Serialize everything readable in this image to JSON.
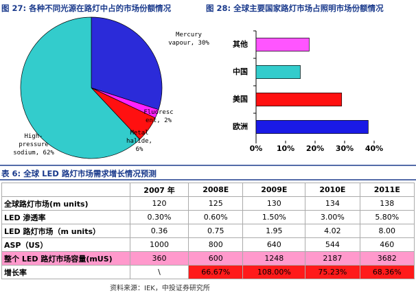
{
  "chart_data": [
    {
      "type": "pie",
      "title": "图 27: 各种不同光源在路灯中占的市场份额情况",
      "categories": [
        "Mercury vapour",
        "Fluorescent",
        "Metal halide",
        "High-pressure sodium"
      ],
      "values": [
        30,
        2,
        6,
        62
      ],
      "labels": [
        "Mercury vapour, 30%",
        "Fluoresc ent, 2%",
        "Metal halide, 6%",
        "High-pressure sodium, 62%"
      ],
      "colors": [
        "#2b2bd9",
        "#ff22ff",
        "#ff1010",
        "#33cccc"
      ]
    },
    {
      "type": "hbar",
      "title": "图 28: 全球主要国家路灯市场占照明市场份额情况",
      "categories": [
        "其他",
        "中国",
        "美国",
        "欧洲"
      ],
      "values": [
        18,
        15,
        29,
        38
      ],
      "colors": [
        "#ff55ff",
        "#33cccc",
        "#ff1010",
        "#1a1ae6"
      ],
      "xlim": [
        0,
        40
      ],
      "xticks": [
        {
          "value": 0,
          "label": "0%"
        },
        {
          "value": 10,
          "label": "10%"
        },
        {
          "value": 20,
          "label": "20%"
        },
        {
          "value": 30,
          "label": "30%"
        },
        {
          "value": 40,
          "label": "40%"
        }
      ]
    }
  ],
  "table": {
    "title": "表 6: 全球 LED 路灯市场需求增长情况预测",
    "header": [
      "2007 年",
      "2008E",
      "2009E",
      "2010E",
      "2011E"
    ],
    "rows": [
      [
        "全球路灯市场(m units)",
        "120",
        "125",
        "130",
        "134",
        "138"
      ],
      [
        "LED 渗透率",
        "0.30%",
        "0.60%",
        "1.50%",
        "3.00%",
        "5.80%"
      ],
      [
        "LED 路灯市场（m units）",
        "0.36",
        "0.75",
        "1.95",
        "4.02",
        "8.00"
      ],
      [
        "ASP（US）",
        "1000",
        "800",
        "640",
        "544",
        "460"
      ],
      [
        "整个 LED 路灯市场容量(mUS)",
        "360",
        "600",
        "1248",
        "2187",
        "3682"
      ],
      [
        "增长率",
        "\\",
        "66.67%",
        "108.00%",
        "75.23%",
        "68.36%"
      ]
    ]
  },
  "source": "资料来源：IEK，中投证券研究所"
}
